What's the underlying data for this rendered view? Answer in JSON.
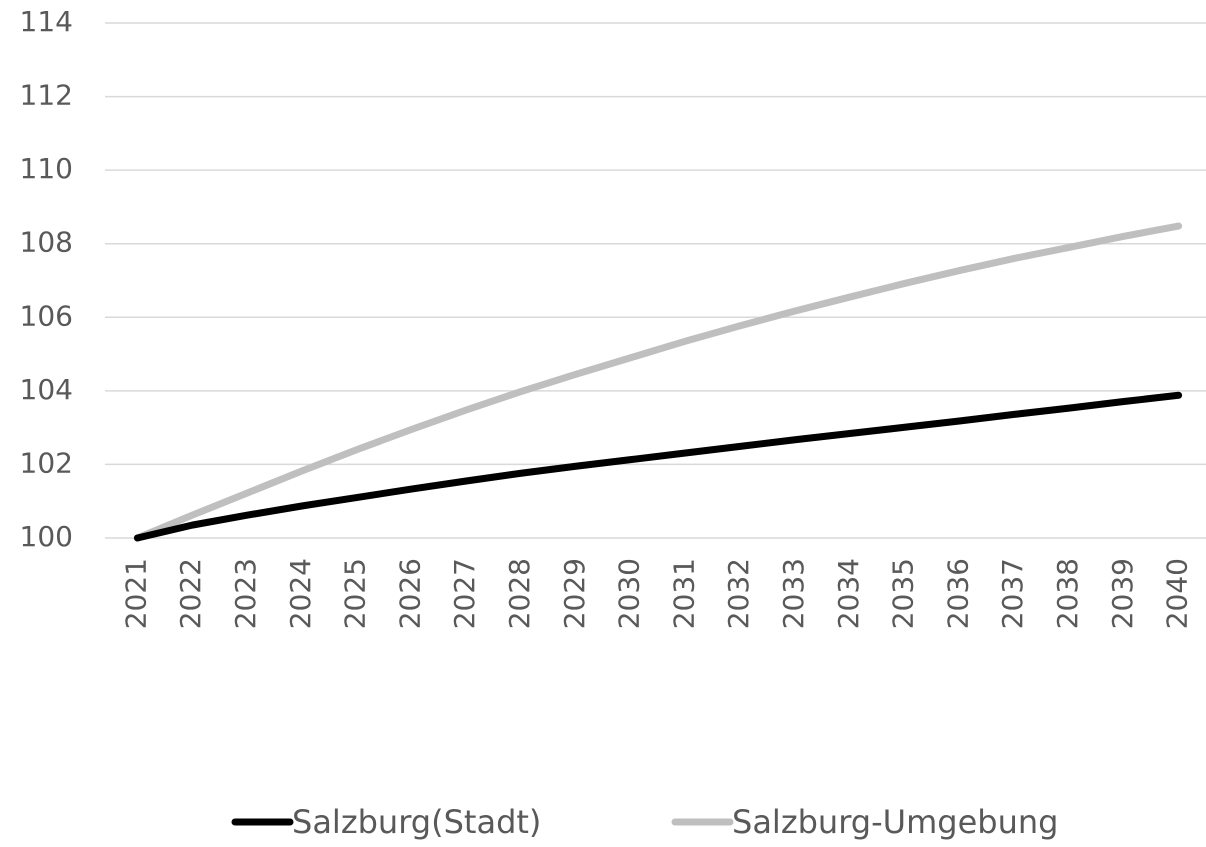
{
  "chart_data": {
    "type": "line",
    "categories": [
      "2021",
      "2022",
      "2023",
      "2024",
      "2025",
      "2026",
      "2027",
      "2028",
      "2029",
      "2030",
      "2031",
      "2032",
      "2033",
      "2034",
      "2035",
      "2036",
      "2037",
      "2038",
      "2039",
      "2040"
    ],
    "series": [
      {
        "name": "Salzburg(Stadt)",
        "color": "#000000",
        "values": [
          100,
          100.35,
          100.62,
          100.87,
          101.1,
          101.33,
          101.55,
          101.76,
          101.95,
          102.13,
          102.31,
          102.49,
          102.67,
          102.84,
          103.01,
          103.18,
          103.36,
          103.53,
          103.71,
          103.88
        ]
      },
      {
        "name": "Salzburg-Umgebung",
        "color": "#bfbfbf",
        "values": [
          100,
          100.62,
          101.22,
          101.82,
          102.4,
          102.95,
          103.48,
          103.98,
          104.45,
          104.9,
          105.35,
          105.77,
          106.17,
          106.55,
          106.92,
          107.27,
          107.6,
          107.9,
          108.2,
          108.48
        ]
      }
    ],
    "ylim": [
      100,
      114
    ],
    "yticks": [
      100,
      102,
      104,
      106,
      108,
      110,
      112,
      114
    ],
    "grid": true,
    "legend": "bottom"
  }
}
